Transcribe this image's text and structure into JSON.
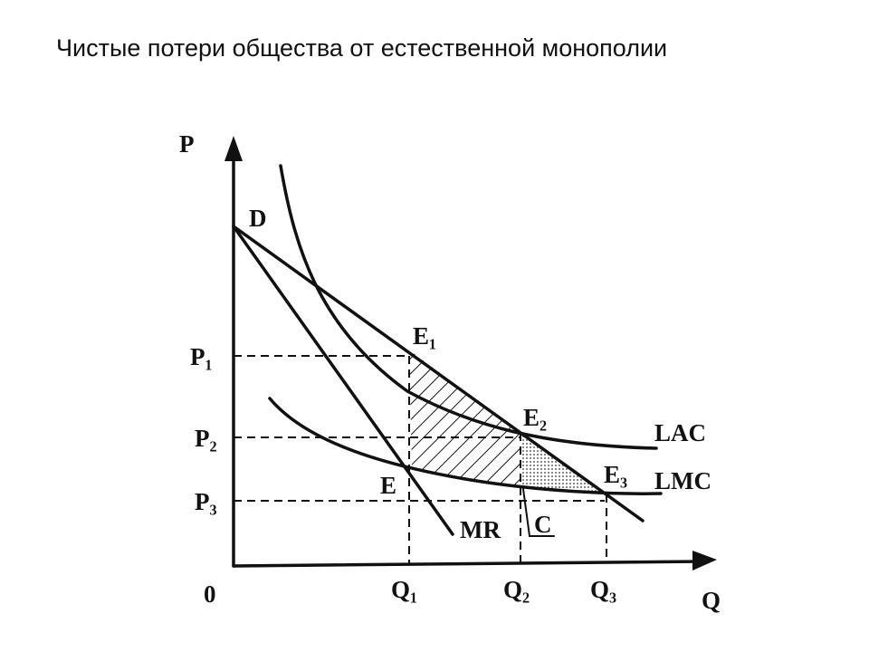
{
  "title": "Чистые потери общества от естественной монополии",
  "labels": {
    "p_axis": "P",
    "q_axis": "Q",
    "origin": "0",
    "demand": "D",
    "e1": "E₁",
    "e2": "E₂",
    "e3": "E₃",
    "e": "E",
    "lac": "LAC",
    "lmc": "LMC",
    "mr": "MR",
    "c": "C",
    "p1": "P₁",
    "p2": "P₂",
    "p3": "P₃",
    "q1": "Q₁",
    "q2": "Q₂",
    "q3": "Q₃"
  }
}
